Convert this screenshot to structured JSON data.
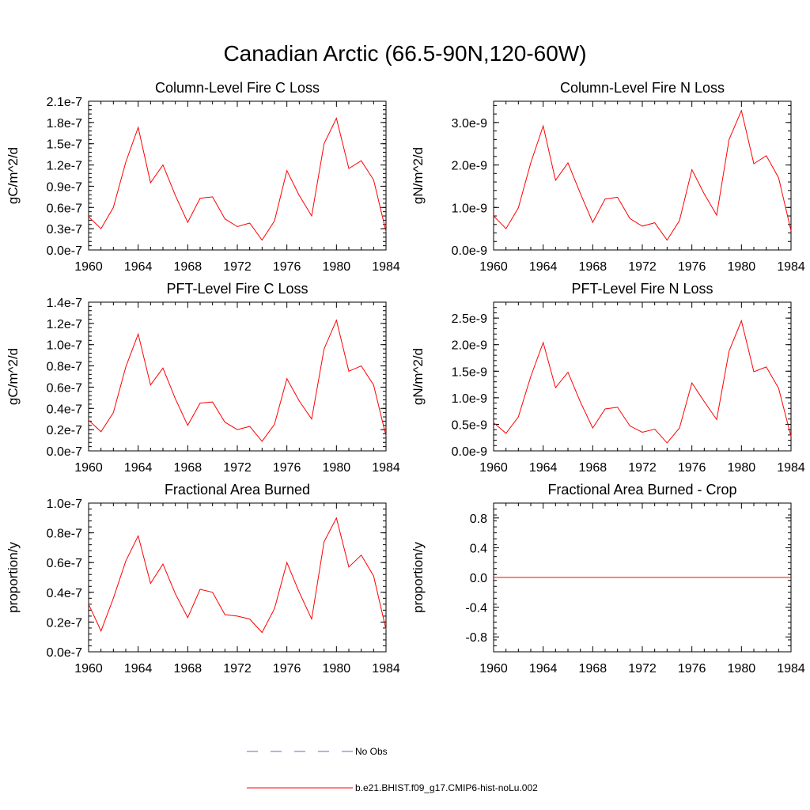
{
  "page_title": "Canadian Arctic (66.5-90N,120-60W)",
  "chart_data": [
    {
      "type": "line",
      "title": "Column-Level Fire C Loss",
      "ylabel": "gC/m^2/d",
      "xlim": [
        1960,
        1984
      ],
      "ylim": [
        0.0,
        2.1e-07
      ],
      "x_ticks": [
        "1960",
        "1964",
        "1968",
        "1972",
        "1976",
        "1980",
        "1984"
      ],
      "y_ticks": [
        "0.0e-7",
        "0.3e-7",
        "0.6e-7",
        "0.9e-7",
        "1.2e-7",
        "1.5e-7",
        "1.8e-7",
        "2.1e-7"
      ],
      "x": [
        1960,
        1961,
        1962,
        1963,
        1964,
        1965,
        1966,
        1967,
        1968,
        1969,
        1970,
        1971,
        1972,
        1973,
        1974,
        1975,
        1976,
        1977,
        1978,
        1979,
        1980,
        1981,
        1982,
        1983,
        1984
      ],
      "series": [
        {
          "name": "b.e21.BHIST.f09_g17.CMIP6-hist-noLu.002",
          "color": "#ff0000",
          "values": [
            4.7e-08,
            3e-08,
            6e-08,
            1.24e-07,
            1.73e-07,
            9.5e-08,
            1.2e-07,
            7.7e-08,
            3.9e-08,
            7.3e-08,
            7.5e-08,
            4.4e-08,
            3.3e-08,
            3.8e-08,
            1.4e-08,
            4.1e-08,
            1.12e-07,
            7.7e-08,
            4.8e-08,
            1.5e-07,
            1.86e-07,
            1.15e-07,
            1.26e-07,
            9.9e-08,
            2.6e-08
          ]
        }
      ]
    },
    {
      "type": "line",
      "title": "Column-Level Fire N Loss",
      "ylabel": "gN/m^2/d",
      "xlim": [
        1960,
        1984
      ],
      "ylim": [
        0.0,
        3.5e-09
      ],
      "x_ticks": [
        "1960",
        "1964",
        "1968",
        "1972",
        "1976",
        "1980",
        "1984"
      ],
      "y_ticks": [
        "0.0e-9",
        "1.0e-9",
        "2.0e-9",
        "3.0e-9"
      ],
      "x": [
        1960,
        1961,
        1962,
        1963,
        1964,
        1965,
        1966,
        1967,
        1968,
        1969,
        1970,
        1971,
        1972,
        1973,
        1974,
        1975,
        1976,
        1977,
        1978,
        1979,
        1980,
        1981,
        1982,
        1983,
        1984
      ],
      "series": [
        {
          "name": "b.e21.BHIST.f09_g17.CMIP6-hist-noLu.002",
          "color": "#ff0000",
          "values": [
            8e-10,
            5e-10,
            9.9e-10,
            2.05e-09,
            2.92e-09,
            1.64e-09,
            2.05e-09,
            1.33e-09,
            6.5e-10,
            1.2e-09,
            1.24e-09,
            7.4e-10,
            5.6e-10,
            6.4e-10,
            2.3e-10,
            6.9e-10,
            1.89e-09,
            1.32e-09,
            8.2e-10,
            2.6e-09,
            3.28e-09,
            2.03e-09,
            2.22e-09,
            1.7e-09,
            4.5e-10
          ]
        }
      ]
    },
    {
      "type": "line",
      "title": "PFT-Level Fire C Loss",
      "ylabel": "gC/m^2/d",
      "xlim": [
        1960,
        1984
      ],
      "ylim": [
        0.0,
        1.4e-07
      ],
      "x_ticks": [
        "1960",
        "1964",
        "1968",
        "1972",
        "1976",
        "1980",
        "1984"
      ],
      "y_ticks": [
        "0.0e-7",
        "0.2e-7",
        "0.4e-7",
        "0.6e-7",
        "0.8e-7",
        "1.0e-7",
        "1.2e-7",
        "1.4e-7"
      ],
      "x": [
        1960,
        1961,
        1962,
        1963,
        1964,
        1965,
        1966,
        1967,
        1968,
        1969,
        1970,
        1971,
        1972,
        1973,
        1974,
        1975,
        1976,
        1977,
        1978,
        1979,
        1980,
        1981,
        1982,
        1983,
        1984
      ],
      "series": [
        {
          "name": "b.e21.BHIST.f09_g17.CMIP6-hist-noLu.002",
          "color": "#ff0000",
          "values": [
            2.9e-08,
            1.8e-08,
            3.6e-08,
            7.9e-08,
            1.1e-07,
            6.2e-08,
            7.8e-08,
            4.9e-08,
            2.4e-08,
            4.5e-08,
            4.6e-08,
            2.7e-08,
            2e-08,
            2.3e-08,
            9e-09,
            2.5e-08,
            6.8e-08,
            4.7e-08,
            3e-08,
            9.6e-08,
            1.23e-07,
            7.5e-08,
            8e-08,
            6.2e-08,
            1.4e-08
          ]
        }
      ]
    },
    {
      "type": "line",
      "title": "PFT-Level Fire N Loss",
      "ylabel": "gN/m^2/d",
      "xlim": [
        1960,
        1984
      ],
      "ylim": [
        0.0,
        2.8e-09
      ],
      "x_ticks": [
        "1960",
        "1964",
        "1968",
        "1972",
        "1976",
        "1980",
        "1984"
      ],
      "y_ticks": [
        "0.0e-9",
        "0.5e-9",
        "1.0e-9",
        "1.5e-9",
        "2.0e-9",
        "2.5e-9"
      ],
      "x": [
        1960,
        1961,
        1962,
        1963,
        1964,
        1965,
        1966,
        1967,
        1968,
        1969,
        1970,
        1971,
        1972,
        1973,
        1974,
        1975,
        1976,
        1977,
        1978,
        1979,
        1980,
        1981,
        1982,
        1983,
        1984
      ],
      "series": [
        {
          "name": "b.e21.BHIST.f09_g17.CMIP6-hist-noLu.002",
          "color": "#ff0000",
          "values": [
            5.3e-10,
            3.3e-10,
            6.4e-10,
            1.4e-09,
            2.04e-09,
            1.19e-09,
            1.48e-09,
            9.2e-10,
            4.3e-10,
            7.9e-10,
            8.2e-10,
            4.7e-10,
            3.5e-10,
            4.1e-10,
            1.5e-10,
            4.3e-10,
            1.28e-09,
            9.3e-10,
            5.9e-10,
            1.88e-09,
            2.45e-09,
            1.49e-09,
            1.58e-09,
            1.18e-09,
            2.7e-10
          ]
        }
      ]
    },
    {
      "type": "line",
      "title": "Fractional Area Burned",
      "ylabel": "proportion/y",
      "xlim": [
        1960,
        1984
      ],
      "ylim": [
        0.0,
        1e-07
      ],
      "x_ticks": [
        "1960",
        "1964",
        "1968",
        "1972",
        "1976",
        "1980",
        "1984"
      ],
      "y_ticks": [
        "0.0e-7",
        "0.2e-7",
        "0.4e-7",
        "0.6e-7",
        "0.8e-7",
        "1.0e-7"
      ],
      "x": [
        1960,
        1961,
        1962,
        1963,
        1964,
        1965,
        1966,
        1967,
        1968,
        1969,
        1970,
        1971,
        1972,
        1973,
        1974,
        1975,
        1976,
        1977,
        1978,
        1979,
        1980,
        1981,
        1982,
        1983,
        1984
      ],
      "series": [
        {
          "name": "b.e21.BHIST.f09_g17.CMIP6-hist-noLu.002",
          "color": "#ff0000",
          "values": [
            3.2e-08,
            1.4e-08,
            3.6e-08,
            6.1e-08,
            7.8e-08,
            4.6e-08,
            5.9e-08,
            3.9e-08,
            2.3e-08,
            4.2e-08,
            4e-08,
            2.5e-08,
            2.4e-08,
            2.2e-08,
            1.3e-08,
            2.9e-08,
            6e-08,
            4e-08,
            2.2e-08,
            7.4e-08,
            9e-08,
            5.7e-08,
            6.5e-08,
            5.1e-08,
            1.5e-08
          ]
        }
      ]
    },
    {
      "type": "line",
      "title": "Fractional Area Burned - Crop",
      "ylabel": "proportion/y",
      "xlim": [
        1960,
        1984
      ],
      "ylim": [
        -1.0,
        1.0
      ],
      "x_ticks": [
        "1960",
        "1964",
        "1968",
        "1972",
        "1976",
        "1980",
        "1984"
      ],
      "y_ticks": [
        "-0.8",
        "-0.4",
        "0.0",
        "0.4",
        "0.8"
      ],
      "x": [
        1960,
        1961,
        1962,
        1963,
        1964,
        1965,
        1966,
        1967,
        1968,
        1969,
        1970,
        1971,
        1972,
        1973,
        1974,
        1975,
        1976,
        1977,
        1978,
        1979,
        1980,
        1981,
        1982,
        1983,
        1984
      ],
      "series": [
        {
          "name": "b.e21.BHIST.f09_g17.CMIP6-hist-noLu.002",
          "color": "#ff0000",
          "values": [
            0,
            0,
            0,
            0,
            0,
            0,
            0,
            0,
            0,
            0,
            0,
            0,
            0,
            0,
            0,
            0,
            0,
            0,
            0,
            0,
            0,
            0,
            0,
            0,
            0
          ]
        }
      ]
    }
  ],
  "legend": [
    {
      "label": "No Obs",
      "color": "#5a6ecf",
      "style": "dashed"
    },
    {
      "label": "b.e21.BHIST.f09_g17.CMIP6-hist-noLu.002",
      "color": "#ff0000",
      "style": "solid"
    }
  ]
}
